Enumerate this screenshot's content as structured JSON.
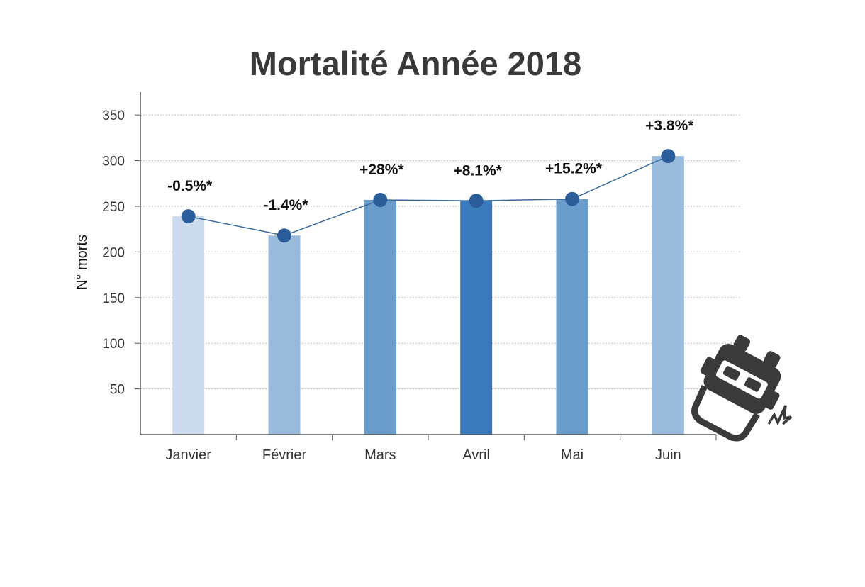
{
  "chart_data": {
    "type": "bar",
    "title": "Mortalité Année 2018",
    "xlabel": "",
    "ylabel": "N° morts",
    "categories": [
      "Janvier",
      "Février",
      "Mars",
      "Avril",
      "Mai",
      "Juin"
    ],
    "values": [
      239,
      218,
      257,
      256,
      258,
      305
    ],
    "line_overlay": true,
    "data_labels": [
      "-0.5%*",
      "-1.4%*",
      "+28%*",
      "+8.1%*",
      "+15.2%*",
      "+3.8%*"
    ],
    "ylim": [
      0,
      375
    ],
    "yticks": [
      50,
      100,
      150,
      200,
      250,
      300,
      350
    ],
    "grid": true,
    "legend": "none",
    "colors": {
      "bars": [
        "#ccdcee",
        "#9bbbdc",
        "#6b9dcc",
        "#3b7bbd",
        "#6b9dcc",
        "#9bbbdc"
      ],
      "line": "#3b6a9e",
      "marker": "#2a5d9a",
      "grid": "#bbbbbb",
      "axis": "#555555",
      "icon": "#3a3a3a"
    },
    "icon": "car-crash-icon"
  }
}
